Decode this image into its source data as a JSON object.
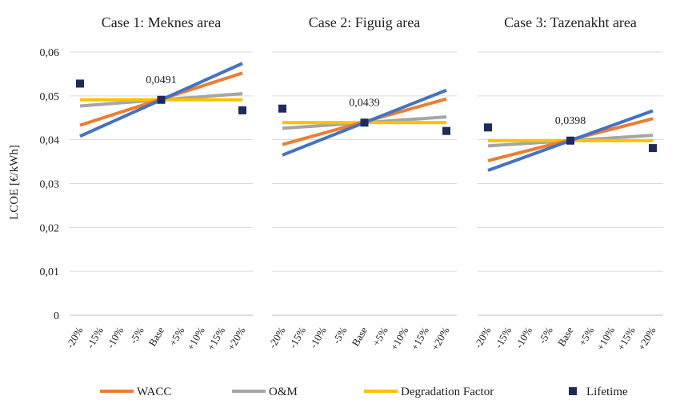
{
  "colors": {
    "wacc": "#ED7D31",
    "om": "#A5A5A5",
    "degradation": "#FFC000",
    "blue": "#4472C4",
    "lifetime": "#1F2A5C",
    "grid": "#D9D9D9",
    "axis": "#BFBFBF"
  },
  "chart_data": {
    "type": "line",
    "ylabel": "LCOE [€/kWh]",
    "ylim": [
      0,
      0.06
    ],
    "yticks": [
      "0",
      "0,01",
      "0,02",
      "0,03",
      "0,04",
      "0,05",
      "0,06"
    ],
    "categories": [
      "-20%",
      "-15%",
      "-10%",
      "-5%",
      "Base",
      "+5%",
      "+10%",
      "+15%",
      "+20%"
    ],
    "grid": "horizontal",
    "legend": {
      "position": "bottom",
      "entries": [
        "WACC",
        "O&M",
        "Degradation Factor",
        "Lifetime"
      ]
    },
    "panels": [
      {
        "title": "Case 1: Meknes area",
        "base_label": "0,0491",
        "series": [
          {
            "name": "WACC",
            "start": 0.0433,
            "base": 0.0491,
            "end": 0.0552
          },
          {
            "name": "O&M",
            "start": 0.0477,
            "base": 0.0491,
            "end": 0.0505
          },
          {
            "name": "Degradation Factor",
            "start": 0.0491,
            "base": 0.0491,
            "end": 0.0491
          },
          {
            "name": "",
            "start": 0.0408,
            "base": 0.0491,
            "end": 0.0574
          }
        ],
        "lifetime": [
          0.0528,
          0.0491,
          0.0467
        ]
      },
      {
        "title": "Case 2: Figuig area",
        "base_label": "0,0439",
        "series": [
          {
            "name": "WACC",
            "start": 0.0389,
            "base": 0.0439,
            "end": 0.0493
          },
          {
            "name": "O&M",
            "start": 0.0426,
            "base": 0.0439,
            "end": 0.0452
          },
          {
            "name": "Degradation Factor",
            "start": 0.0439,
            "base": 0.0439,
            "end": 0.0439
          },
          {
            "name": "",
            "start": 0.0365,
            "base": 0.0439,
            "end": 0.0513
          }
        ],
        "lifetime": [
          0.0471,
          0.0439,
          0.042
        ]
      },
      {
        "title": "Case 3: Tazenakht area",
        "base_label": "0,0398",
        "series": [
          {
            "name": "WACC",
            "start": 0.0352,
            "base": 0.0398,
            "end": 0.0448
          },
          {
            "name": "O&M",
            "start": 0.0386,
            "base": 0.0398,
            "end": 0.041
          },
          {
            "name": "Degradation Factor",
            "start": 0.0398,
            "base": 0.0398,
            "end": 0.0398
          },
          {
            "name": "",
            "start": 0.033,
            "base": 0.0398,
            "end": 0.0466
          }
        ],
        "lifetime": [
          0.0428,
          0.0398,
          0.0381
        ]
      }
    ]
  }
}
